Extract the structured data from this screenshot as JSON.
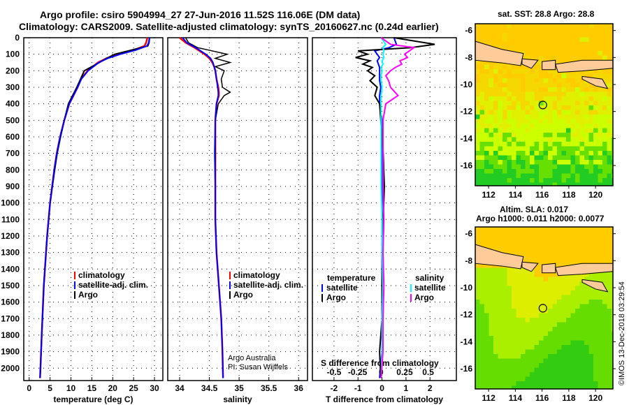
{
  "title_line1": "Argo profile: csiro 5904994_27 27-Jun-2016 11.52S 116.06E (DM data)",
  "title_line2": "Climatology: CARS2009. Satellite-adjusted climatology: synTS_20160627.nc (0.24d earlier)",
  "copyright": "©IMOS 13-Dec-2018 03:29:54",
  "colors": {
    "climatology": "#ff0000",
    "satellite": "#0000ff",
    "argo": "#000000",
    "sal_satellite": "#00ffff",
    "sal_argo": "#ff00ff"
  },
  "chart_data": [
    {
      "type": "line",
      "name": "temperature",
      "xlabel": "temperature (deg C)",
      "ylabel": "depth",
      "xlim": [
        -1.3,
        32
      ],
      "ylim": [
        2075,
        0
      ],
      "xticks": [
        0,
        5,
        10,
        15,
        20,
        25,
        30
      ],
      "yticks": [
        0,
        100,
        200,
        300,
        400,
        500,
        600,
        700,
        800,
        900,
        1000,
        1100,
        1200,
        1300,
        1400,
        1500,
        1600,
        1700,
        1800,
        1900,
        2000
      ],
      "legend": [
        "climatology",
        "satellite-adj. clim.",
        "Argo"
      ],
      "depth": [
        0,
        30,
        50,
        75,
        100,
        125,
        150,
        200,
        250,
        300,
        400,
        500,
        600,
        700,
        800,
        1000,
        1200,
        1500,
        1800,
        2000,
        2060
      ],
      "series": [
        {
          "name": "climatology",
          "values": [
            28.3,
            28.0,
            27.6,
            25,
            21.5,
            18.5,
            16.5,
            14,
            12.4,
            11.6,
            9.6,
            8.4,
            7.4,
            6.6,
            6.0,
            5.0,
            4.3,
            3.5,
            3.0,
            2.7,
            2.6
          ]
        },
        {
          "name": "satellite-adj. clim.",
          "values": [
            28.8,
            28.6,
            28.2,
            25.5,
            21.8,
            18.8,
            16.7,
            14.1,
            12.5,
            11.6,
            9.6,
            8.4,
            7.4,
            6.6,
            6.0,
            5.0,
            4.3,
            3.5,
            3.0,
            2.7,
            2.6
          ]
        },
        {
          "name": "Argo",
          "values": [
            28.8,
            28.7,
            28.4,
            24.5,
            20.5,
            18.5,
            16.8,
            13.2,
            12.3,
            11.4,
            9.4,
            8.4,
            7.5,
            6.7,
            6.1,
            5.0,
            4.3,
            3.5,
            3.0,
            2.7,
            2.6
          ]
        }
      ]
    },
    {
      "type": "line",
      "name": "salinity",
      "xlabel": "salinity",
      "xlim": [
        33.8,
        36.15
      ],
      "ylim": [
        2075,
        0
      ],
      "xticks": [
        34,
        34.5,
        35,
        35.5,
        36
      ],
      "legend": [
        "climatology",
        "satellite-adj. clim.",
        "Argo"
      ],
      "annotation": [
        "Argo Australia",
        "PI: Susan Wijffels"
      ],
      "depth": [
        0,
        30,
        60,
        100,
        125,
        150,
        175,
        200,
        250,
        300,
        330,
        350,
        400,
        500,
        700,
        900,
        1100,
        1300,
        1500,
        1700,
        1900,
        2060
      ],
      "series": [
        {
          "name": "climatology",
          "values": [
            34.0,
            34.1,
            34.25,
            34.42,
            34.5,
            34.55,
            34.58,
            34.6,
            34.62,
            34.65,
            34.66,
            34.66,
            34.62,
            34.6,
            34.6,
            34.6,
            34.6,
            34.62,
            34.66,
            34.7,
            34.72,
            34.73
          ]
        },
        {
          "name": "satellite-adj. clim.",
          "values": [
            34.05,
            34.12,
            34.27,
            34.44,
            34.52,
            34.56,
            34.58,
            34.6,
            34.62,
            34.64,
            34.65,
            34.65,
            34.62,
            34.6,
            34.59,
            34.6,
            34.6,
            34.62,
            34.66,
            34.7,
            34.72,
            34.73
          ]
        },
        {
          "name": "Argo",
          "values": [
            34.1,
            34.15,
            34.3,
            34.8,
            34.6,
            34.85,
            34.6,
            34.75,
            34.7,
            34.72,
            34.85,
            34.75,
            34.65,
            34.6,
            34.6,
            34.6,
            34.6,
            34.62,
            34.66,
            34.7,
            34.72,
            34.73
          ]
        }
      ]
    },
    {
      "type": "line",
      "name": "difference",
      "xlabel": "T difference from climatology",
      "x2label": "S difference from climatology",
      "xlim": [
        -2.9,
        3.1
      ],
      "x2lim": [
        -0.73,
        0.8
      ],
      "ylim": [
        2075,
        0
      ],
      "xticks": [
        -2,
        -1,
        0,
        1,
        2
      ],
      "x2ticks": [
        -0.5,
        -0.25,
        0,
        0.25,
        0.5
      ],
      "x2ticklabels": [
        "-0.5",
        "-0.25",
        "0",
        "0.25",
        "0.5"
      ],
      "legend_temperature": {
        "title": "temperature",
        "items": [
          "satellite",
          "Argo"
        ]
      },
      "legend_salinity": {
        "title": "salinity",
        "items": [
          "satellite",
          "Argo"
        ]
      },
      "depth": [
        0,
        40,
        60,
        80,
        100,
        120,
        140,
        160,
        180,
        200,
        230,
        260,
        300,
        350,
        400,
        500,
        700,
        900,
        1100,
        1300,
        1500,
        1700,
        1900,
        2060
      ],
      "series": [
        {
          "name": "T satellite",
          "axis": "T",
          "values": [
            0.5,
            0.6,
            0.3,
            -0.3,
            -0.2,
            -0.1,
            -0.2,
            -0.15,
            -0.1,
            -0.1,
            -0.1,
            -0.1,
            -0.05,
            -0.1,
            -0.1,
            0,
            0,
            0,
            0,
            0,
            0,
            0,
            0,
            -0.1
          ]
        },
        {
          "name": "T Argo",
          "axis": "T",
          "values": [
            0.5,
            2.2,
            1.2,
            -1.0,
            -0.6,
            -1.1,
            -0.5,
            -0.8,
            -0.4,
            -0.6,
            -0.3,
            -0.5,
            -0.2,
            -0.3,
            -0.1,
            -0.05,
            0.05,
            0.1,
            0.05,
            0.02,
            0,
            0,
            -0.1,
            -0.05
          ]
        },
        {
          "name": "S satellite",
          "axis": "S",
          "values": [
            0.0,
            0.05,
            0.02,
            0.03,
            0.02,
            0.03,
            0.01,
            0.02,
            0.0,
            0.01,
            0.0,
            0.0,
            0.01,
            0.0,
            0.0,
            0.0,
            0.0,
            0.0,
            0.01,
            0.01,
            0.02,
            0.01,
            0.01,
            0.0
          ]
        },
        {
          "name": "S Argo",
          "axis": "S",
          "values": [
            0.0,
            0.1,
            0.35,
            0.3,
            0.25,
            0.28,
            0.2,
            0.22,
            0.15,
            0.1,
            0.05,
            0.08,
            0.1,
            0.18,
            0.05,
            0.02,
            0.02,
            0.02,
            0.03,
            0.02,
            0.03,
            0.02,
            0.02,
            0.0
          ]
        }
      ]
    },
    {
      "type": "heatmap",
      "name": "sst_map",
      "title": "sat. SST: 28.8 Argo: 28.8",
      "xlim": [
        111,
        121.3
      ],
      "ylim": [
        -17.5,
        -5.5
      ],
      "xticks": [
        112,
        114,
        116,
        118,
        120
      ],
      "yticks": [
        -6,
        -8,
        -10,
        -12,
        -14,
        -16
      ],
      "marker": [
        116.06,
        -11.52
      ]
    },
    {
      "type": "heatmap",
      "name": "sla_map",
      "title": "Altim. SLA: 0.017",
      "subtitle": "Argo h1000: 0.011 h2000: 0.0077",
      "xlim": [
        111,
        121.3
      ],
      "ylim": [
        -17.5,
        -5.5
      ],
      "xticks": [
        112,
        114,
        116,
        118,
        120
      ],
      "yticks": [
        -6,
        -8,
        -10,
        -12,
        -14,
        -16
      ],
      "marker": [
        116.06,
        -11.52
      ]
    }
  ]
}
